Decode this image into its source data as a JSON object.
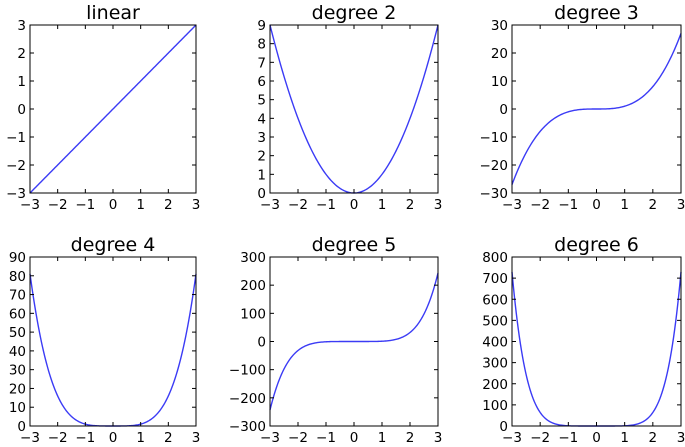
{
  "style": {
    "line_color": "#3b3bf5",
    "frame_color": "#000000",
    "background": "#ffffff"
  },
  "chart_data": [
    {
      "type": "line",
      "title": "linear",
      "degree": 1,
      "xlim": [
        -3,
        3
      ],
      "ylim": [
        -3,
        3
      ],
      "xticks": [
        -3,
        -2,
        -1,
        0,
        1,
        2,
        3
      ],
      "yticks": [
        -3,
        -2,
        -1,
        0,
        1,
        2,
        3
      ],
      "x": [
        -3,
        -2.5,
        -2,
        -1.5,
        -1,
        -0.5,
        0,
        0.5,
        1,
        1.5,
        2,
        2.5,
        3
      ],
      "y": [
        -3,
        -2.5,
        -2,
        -1.5,
        -1,
        -0.5,
        0,
        0.5,
        1,
        1.5,
        2,
        2.5,
        3
      ]
    },
    {
      "type": "line",
      "title": "degree 2",
      "degree": 2,
      "xlim": [
        -3,
        3
      ],
      "ylim": [
        0,
        9
      ],
      "xticks": [
        -3,
        -2,
        -1,
        0,
        1,
        2,
        3
      ],
      "yticks": [
        0,
        1,
        2,
        3,
        4,
        5,
        6,
        7,
        8,
        9
      ],
      "x": [
        -3,
        -2.5,
        -2,
        -1.5,
        -1,
        -0.5,
        0,
        0.5,
        1,
        1.5,
        2,
        2.5,
        3
      ],
      "y": [
        9,
        6.25,
        4,
        2.25,
        1,
        0.25,
        0,
        0.25,
        1,
        2.25,
        4,
        6.25,
        9
      ]
    },
    {
      "type": "line",
      "title": "degree 3",
      "degree": 3,
      "xlim": [
        -3,
        3
      ],
      "ylim": [
        -30,
        30
      ],
      "xticks": [
        -3,
        -2,
        -1,
        0,
        1,
        2,
        3
      ],
      "yticks": [
        -30,
        -20,
        -10,
        0,
        10,
        20,
        30
      ],
      "x": [
        -3,
        -2.5,
        -2,
        -1.5,
        -1,
        -0.5,
        0,
        0.5,
        1,
        1.5,
        2,
        2.5,
        3
      ],
      "y": [
        -27,
        -15.6,
        -8,
        -3.4,
        -1,
        -0.1,
        0,
        0.1,
        1,
        3.4,
        8,
        15.6,
        27
      ]
    },
    {
      "type": "line",
      "title": "degree 4",
      "degree": 4,
      "xlim": [
        -3,
        3
      ],
      "ylim": [
        0,
        90
      ],
      "xticks": [
        -3,
        -2,
        -1,
        0,
        1,
        2,
        3
      ],
      "yticks": [
        0,
        10,
        20,
        30,
        40,
        50,
        60,
        70,
        80,
        90
      ],
      "x": [
        -3,
        -2.5,
        -2,
        -1.5,
        -1,
        -0.5,
        0,
        0.5,
        1,
        1.5,
        2,
        2.5,
        3
      ],
      "y": [
        81,
        39.1,
        16,
        5.1,
        1,
        0.1,
        0,
        0.1,
        1,
        5.1,
        16,
        39.1,
        81
      ]
    },
    {
      "type": "line",
      "title": "degree 5",
      "degree": 5,
      "xlim": [
        -3,
        3
      ],
      "ylim": [
        -300,
        300
      ],
      "xticks": [
        -3,
        -2,
        -1,
        0,
        1,
        2,
        3
      ],
      "yticks": [
        -300,
        -200,
        -100,
        0,
        100,
        200,
        300
      ],
      "x": [
        -3,
        -2.5,
        -2,
        -1.5,
        -1,
        -0.5,
        0,
        0.5,
        1,
        1.5,
        2,
        2.5,
        3
      ],
      "y": [
        -243,
        -97.7,
        -32,
        -7.6,
        -1,
        0,
        0,
        0,
        1,
        7.6,
        32,
        97.7,
        243
      ]
    },
    {
      "type": "line",
      "title": "degree 6",
      "degree": 6,
      "xlim": [
        -3,
        3
      ],
      "ylim": [
        0,
        800
      ],
      "xticks": [
        -3,
        -2,
        -1,
        0,
        1,
        2,
        3
      ],
      "yticks": [
        0,
        100,
        200,
        300,
        400,
        500,
        600,
        700,
        800
      ],
      "x": [
        -3,
        -2.5,
        -2,
        -1.5,
        -1,
        -0.5,
        0,
        0.5,
        1,
        1.5,
        2,
        2.5,
        3
      ],
      "y": [
        729,
        244.1,
        64,
        11.4,
        1,
        0,
        0,
        0,
        1,
        11.4,
        64,
        244.1,
        729
      ]
    }
  ]
}
